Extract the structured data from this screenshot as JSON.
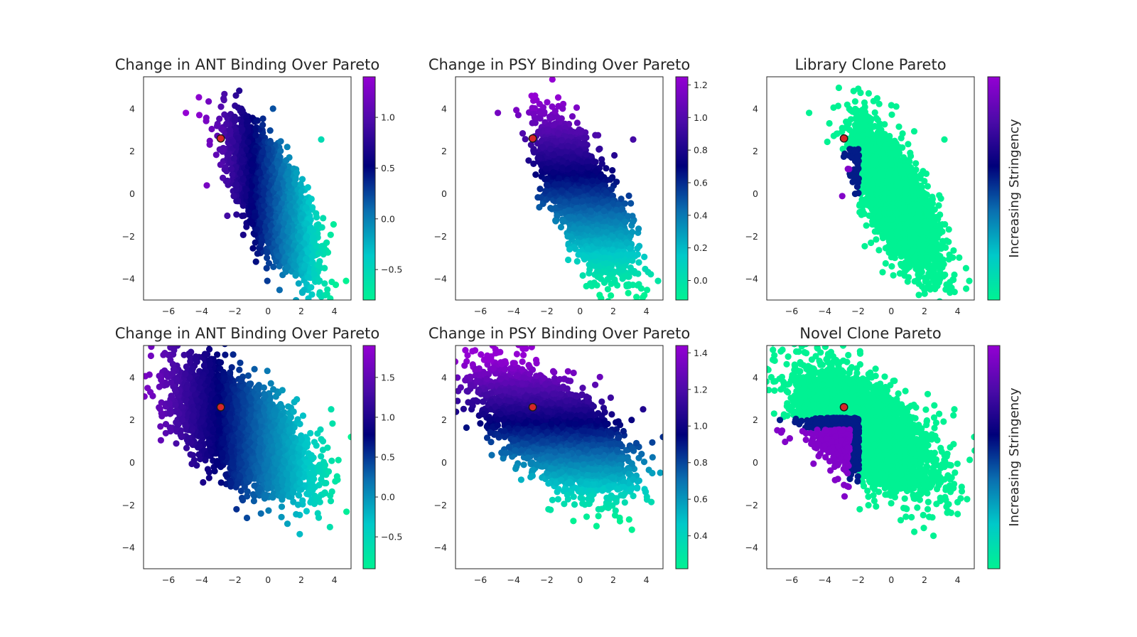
{
  "figure": {
    "colormap_name": "custom cyan-navy-violet",
    "colormap_stops": [
      "#00f293",
      "#00c9c9",
      "#0a6fb0",
      "#00007a",
      "#4b0aa8",
      "#9400d3"
    ],
    "grid": false,
    "reference_point": {
      "x": -2.85,
      "y": 2.6,
      "color": "#d62728"
    }
  },
  "chart_data": [
    {
      "type": "scatter",
      "title": "Change in ANT Binding Over Pareto",
      "xlim": [
        -7.5,
        5
      ],
      "ylim": [
        -5,
        5.5
      ],
      "xticks": [
        -6,
        -4,
        -2,
        0,
        2,
        4
      ],
      "yticks": [
        -4,
        -2,
        0,
        2,
        4
      ],
      "point_cloud": {
        "center": [
          0.3,
          -0.3
        ],
        "slope": -1.5,
        "spread_along": 1.8,
        "spread_perp": 0.7,
        "count": 4000
      },
      "color_variable": "x-gradient",
      "outliers": [
        [
          -4.95,
          3.8
        ],
        [
          4.7,
          -4.1
        ],
        [
          3.2,
          2.55
        ],
        [
          0.3,
          4.0
        ]
      ],
      "colorbar": {
        "label": "",
        "range": [
          -0.8,
          1.4
        ],
        "ticks": [
          -0.5,
          0.0,
          0.5,
          1.0
        ],
        "tick_labels": [
          "−0.5",
          "0.0",
          "0.5",
          "1.0"
        ]
      }
    },
    {
      "type": "scatter",
      "title": "Change in PSY Binding Over Pareto",
      "xlim": [
        -7.5,
        5
      ],
      "ylim": [
        -5,
        5.5
      ],
      "xticks": [
        -6,
        -4,
        -2,
        0,
        2,
        4
      ],
      "yticks": [
        -4,
        -2,
        0,
        2,
        4
      ],
      "point_cloud": {
        "center": [
          0.3,
          -0.3
        ],
        "slope": -1.5,
        "spread_along": 1.8,
        "spread_perp": 0.7,
        "count": 4000
      },
      "color_variable": "y-gradient",
      "outliers": [
        [
          -4.95,
          3.8
        ],
        [
          4.7,
          -4.1
        ],
        [
          3.2,
          2.55
        ],
        [
          -0.2,
          4.05
        ]
      ],
      "colorbar": {
        "label": "",
        "range": [
          -0.12,
          1.25
        ],
        "ticks": [
          0.0,
          0.2,
          0.4,
          0.6,
          0.8,
          1.0,
          1.2
        ],
        "tick_labels": [
          "0.0",
          "0.2",
          "0.4",
          "0.6",
          "0.8",
          "1.0",
          "1.2"
        ]
      }
    },
    {
      "type": "scatter",
      "title": "Library Clone Pareto",
      "xlim": [
        -7.5,
        5
      ],
      "ylim": [
        -5,
        5.5
      ],
      "xticks": [
        -6,
        -4,
        -2,
        0,
        2,
        4
      ],
      "yticks": [
        -4,
        -2,
        0,
        2,
        4
      ],
      "point_cloud": {
        "center": [
          0.3,
          -0.3
        ],
        "slope": -1.5,
        "spread_along": 1.8,
        "spread_perp": 0.7,
        "count": 4000
      },
      "color_variable": "pareto-corner",
      "outliers": [
        [
          -4.95,
          3.8
        ],
        [
          4.7,
          -4.1
        ],
        [
          3.2,
          2.55
        ],
        [
          0.3,
          4.1
        ]
      ],
      "colorbar": {
        "label": "Increasing Stringency",
        "range": [
          0,
          1
        ],
        "ticks": [],
        "tick_labels": []
      }
    },
    {
      "type": "scatter",
      "title": "Change in ANT Binding Over Pareto",
      "xlim": [
        -7.5,
        5
      ],
      "ylim": [
        -5,
        5.5
      ],
      "xticks": [
        -6,
        -4,
        -2,
        0,
        2,
        4
      ],
      "yticks": [
        -4,
        -2,
        0,
        2,
        4
      ],
      "point_cloud": {
        "center": [
          -1.6,
          1.5
        ],
        "slope": -0.55,
        "spread_along": 2.2,
        "spread_perp": 0.95,
        "count": 4000
      },
      "color_variable": "x-gradient",
      "outliers": [
        [
          3.8,
          2.5
        ],
        [
          3.2,
          -0.8
        ],
        [
          5.0,
          1.2
        ],
        [
          -3.8,
          5.1
        ],
        [
          -1.9,
          -2.2
        ]
      ],
      "colorbar": {
        "label": "",
        "range": [
          -0.9,
          1.9
        ],
        "ticks": [
          -0.5,
          0.0,
          0.5,
          1.0,
          1.5
        ],
        "tick_labels": [
          "−0.5",
          "0.0",
          "0.5",
          "1.0",
          "1.5"
        ]
      }
    },
    {
      "type": "scatter",
      "title": "Change in PSY Binding Over Pareto",
      "xlim": [
        -7.5,
        5
      ],
      "ylim": [
        -5,
        5.5
      ],
      "xticks": [
        -6,
        -4,
        -2,
        0,
        2,
        4
      ],
      "yticks": [
        -4,
        -2,
        0,
        2,
        4
      ],
      "point_cloud": {
        "center": [
          -1.6,
          1.5
        ],
        "slope": -0.55,
        "spread_along": 2.2,
        "spread_perp": 0.95,
        "count": 4000
      },
      "color_variable": "y-gradient",
      "outliers": [
        [
          3.8,
          2.5
        ],
        [
          3.2,
          -0.8
        ],
        [
          5.0,
          1.2
        ],
        [
          -3.8,
          5.1
        ],
        [
          -1.9,
          -2.2
        ]
      ],
      "colorbar": {
        "label": "",
        "range": [
          0.22,
          1.44
        ],
        "ticks": [
          0.4,
          0.6,
          0.8,
          1.0,
          1.2,
          1.4
        ],
        "tick_labels": [
          "0.4",
          "0.6",
          "0.8",
          "1.0",
          "1.2",
          "1.4"
        ]
      }
    },
    {
      "type": "scatter",
      "title": "Novel Clone Pareto",
      "xlim": [
        -7.5,
        5
      ],
      "ylim": [
        -5,
        5.5
      ],
      "xticks": [
        -6,
        -4,
        -2,
        0,
        2,
        4
      ],
      "yticks": [
        -4,
        -2,
        0,
        2,
        4
      ],
      "point_cloud": {
        "center": [
          -1.6,
          1.5
        ],
        "slope": -0.55,
        "spread_along": 2.2,
        "spread_perp": 0.95,
        "count": 4000
      },
      "color_variable": "pareto-corner",
      "outliers": [
        [
          3.8,
          2.5
        ],
        [
          3.2,
          -0.8
        ],
        [
          5.0,
          1.2
        ],
        [
          -3.8,
          5.1
        ],
        [
          -1.9,
          -2.2
        ]
      ],
      "colorbar": {
        "label": "Increasing Stringency",
        "range": [
          0,
          1
        ],
        "ticks": [],
        "tick_labels": []
      }
    }
  ]
}
